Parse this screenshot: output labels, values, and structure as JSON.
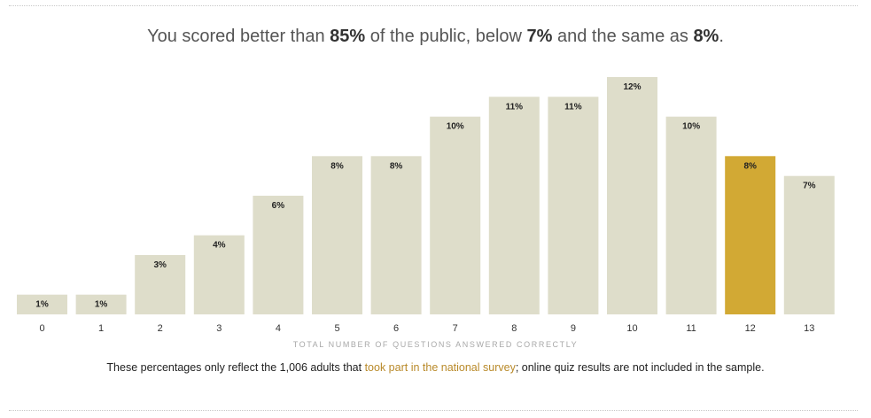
{
  "headline": {
    "prefix": "You scored better than ",
    "better": "85%",
    "mid1": " of the public, below ",
    "below": "7%",
    "mid2": " and the same as ",
    "same": "8%",
    "suffix": "."
  },
  "chart_data": {
    "type": "bar",
    "categories": [
      "0",
      "1",
      "2",
      "3",
      "4",
      "5",
      "6",
      "7",
      "8",
      "9",
      "10",
      "11",
      "12",
      "13"
    ],
    "values": [
      1,
      1,
      3,
      4,
      6,
      8,
      8,
      10,
      11,
      11,
      12,
      10,
      8,
      7
    ],
    "value_labels": [
      "1%",
      "1%",
      "3%",
      "4%",
      "6%",
      "8%",
      "8%",
      "10%",
      "11%",
      "11%",
      "12%",
      "10%",
      "8%",
      "7%"
    ],
    "xlabel": "TOTAL NUMBER OF QUESTIONS ANSWERED CORRECTLY",
    "ylabel": "",
    "ylim": [
      0,
      12
    ],
    "highlight_category": "12",
    "colors": {
      "bar": "#deddca",
      "highlight": "#d2a934"
    },
    "grid": false,
    "legend": "none"
  },
  "note": {
    "before": "These percentages only reflect the 1,006 adults that ",
    "link": "took part in the national survey",
    "after": "; online quiz results are not included in the sample."
  }
}
